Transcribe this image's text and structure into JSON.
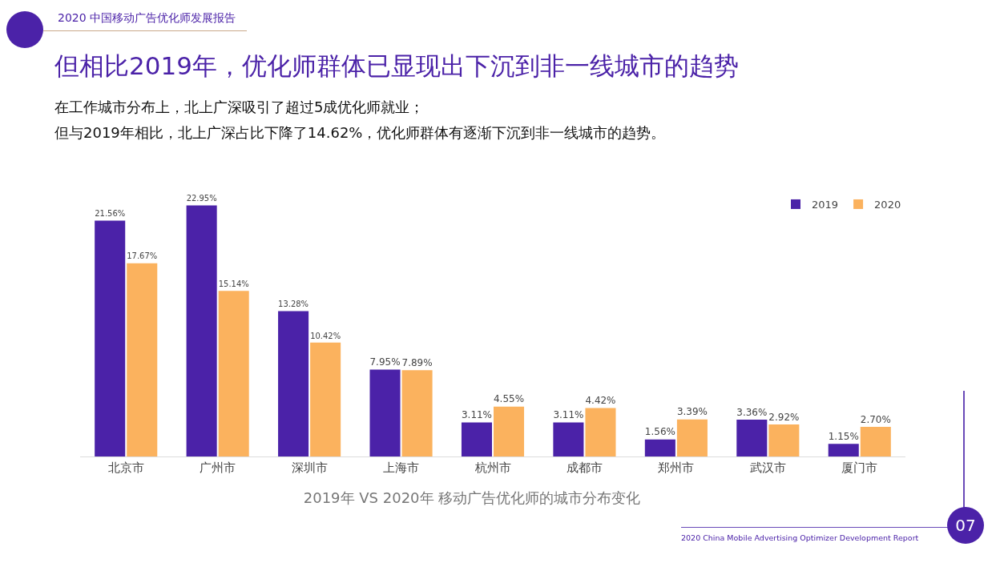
{
  "chart_data": {
    "type": "bar",
    "title": "但相比2019年，优化师群体已显现出下沉到非一线城市的趋势",
    "subtitle": "在工作城市分布上，北上广深吸引了超过5成优化师就业；",
    "categories": [
      "北京市",
      "广州市",
      "深圳市",
      "上海市",
      "杭州市",
      "成都市",
      "郑州市",
      "武汉市",
      "厦门市"
    ],
    "series": [
      {
        "name": "2019",
        "color": "#4b22a8",
        "values": [
          21.56,
          22.95,
          13.28,
          7.95,
          3.11,
          3.11,
          1.56,
          3.36,
          1.15
        ],
        "value_labels": [
          "21.56%",
          "22.95%",
          "13.28%",
          "7.95%",
          "3.11%",
          "3.11%",
          "1.56%",
          "3.36%",
          "1.15%"
        ]
      },
      {
        "name": "2020",
        "color": "#fbb25e",
        "values": [
          17.67,
          15.14,
          10.42,
          7.89,
          4.55,
          4.42,
          3.39,
          2.92,
          2.7
        ],
        "value_labels": [
          "17.67%",
          "15.14%",
          "10.42%",
          "7.89%",
          "4.55%",
          "4.42%",
          "3.39%",
          "2.92%",
          "2.70%"
        ]
      }
    ],
    "legend": "top right",
    "grid": false,
    "annotations": [
      "但与2019年相比，北上广深占比下降了14.62%，优化师群体有逐渐下沉到非一线城市的趋势。",
      "2020 中国移动广告优化师发展报告",
      "2019年 VS 2020年 移动广告优化师的城市分布变化",
      "2020 China Mobile Advertising Optimizer Development Report",
      "07"
    ]
  }
}
